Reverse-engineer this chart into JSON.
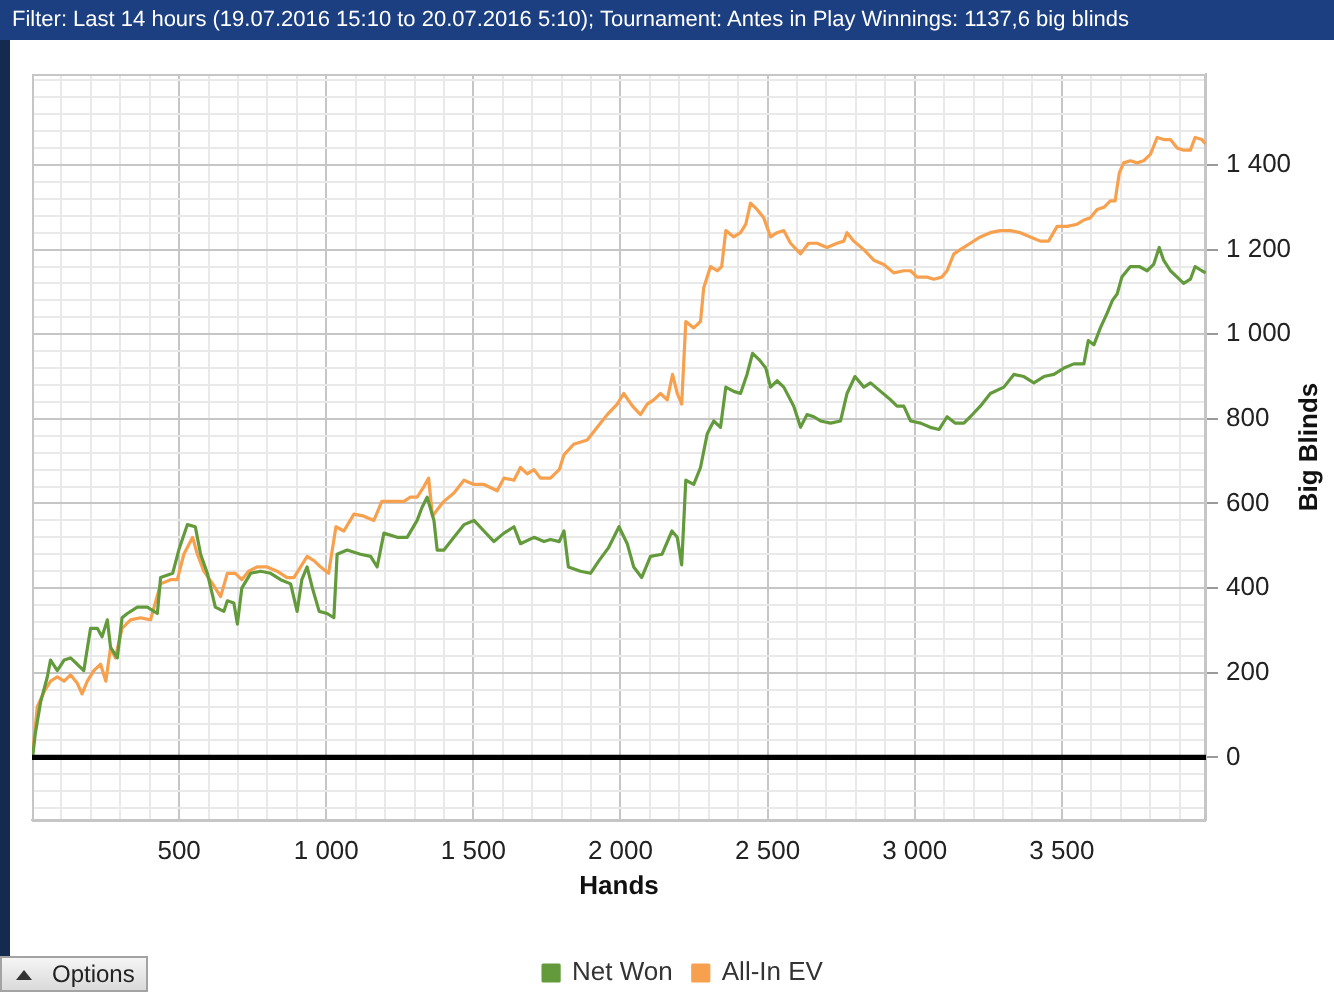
{
  "chart_data": {
    "type": "line",
    "title": "Filter: Last 14 hours (19.07.2016 15:10 to 20.07.2016 5:10); Tournament: Antes in Play Winnings: 1137,6 big blinds",
    "xlabel": "Hands",
    "ylabel": "Big Blinds",
    "xlim": [
      0,
      3990
    ],
    "xticks": [
      {
        "value": 100,
        "label": null
      },
      {
        "value": 200,
        "label": null
      },
      {
        "value": 300,
        "label": null
      },
      {
        "value": 400,
        "label": null
      },
      500,
      {
        "value": 600,
        "label": null
      },
      {
        "value": 700,
        "label": null
      },
      {
        "value": 800,
        "label": null
      },
      {
        "value": 900,
        "label": null
      },
      {
        "value": 1000,
        "label": "1 000"
      },
      {
        "value": 1100,
        "label": null
      },
      {
        "value": 1200,
        "label": null
      },
      {
        "value": 1300,
        "label": null
      },
      {
        "value": 1400,
        "label": null
      },
      {
        "value": 1500,
        "label": "1 500"
      },
      {
        "value": 1600,
        "label": null
      },
      {
        "value": 1700,
        "label": null
      },
      {
        "value": 1800,
        "label": null
      },
      {
        "value": 1900,
        "label": null
      },
      {
        "value": 2000,
        "label": "2 000"
      },
      {
        "value": 2100,
        "label": null
      },
      {
        "value": 2200,
        "label": null
      },
      {
        "value": 2300,
        "label": null
      },
      {
        "value": 2400,
        "label": null
      },
      {
        "value": 2500,
        "label": "2 500"
      },
      {
        "value": 2600,
        "label": null
      },
      {
        "value": 2700,
        "label": null
      },
      {
        "value": 2800,
        "label": null
      },
      {
        "value": 2900,
        "label": null
      },
      {
        "value": 3000,
        "label": "3 000"
      },
      {
        "value": 3100,
        "label": null
      },
      {
        "value": 3200,
        "label": null
      },
      {
        "value": 3300,
        "label": null
      },
      {
        "value": 3400,
        "label": null
      },
      {
        "value": 3500,
        "label": "3 500"
      },
      {
        "value": 3600,
        "label": null
      },
      {
        "value": 3700,
        "label": null
      },
      {
        "value": 3800,
        "label": null
      },
      {
        "value": 3900,
        "label": null
      }
    ],
    "ylim": [
      -148,
      1615
    ],
    "yticks": [
      {
        "value": -120,
        "label": null
      },
      {
        "value": -80,
        "label": null
      },
      {
        "value": -40,
        "label": null
      },
      0,
      {
        "value": 40,
        "label": null
      },
      {
        "value": 80,
        "label": null
      },
      {
        "value": 120,
        "label": null
      },
      {
        "value": 160,
        "label": null
      },
      200,
      {
        "value": 240,
        "label": null
      },
      {
        "value": 280,
        "label": null
      },
      {
        "value": 320,
        "label": null
      },
      {
        "value": 360,
        "label": null
      },
      400,
      {
        "value": 440,
        "label": null
      },
      {
        "value": 480,
        "label": null
      },
      {
        "value": 520,
        "label": null
      },
      {
        "value": 560,
        "label": null
      },
      600,
      {
        "value": 640,
        "label": null
      },
      {
        "value": 680,
        "label": null
      },
      {
        "value": 720,
        "label": null
      },
      {
        "value": 760,
        "label": null
      },
      800,
      {
        "value": 840,
        "label": null
      },
      {
        "value": 880,
        "label": null
      },
      {
        "value": 920,
        "label": null
      },
      {
        "value": 960,
        "label": null
      },
      {
        "value": 1000,
        "label": "1 000"
      },
      {
        "value": 1040,
        "label": null
      },
      {
        "value": 1080,
        "label": null
      },
      {
        "value": 1120,
        "label": null
      },
      {
        "value": 1160,
        "label": null
      },
      {
        "value": 1200,
        "label": "1 200"
      },
      {
        "value": 1240,
        "label": null
      },
      {
        "value": 1280,
        "label": null
      },
      {
        "value": 1320,
        "label": null
      },
      {
        "value": 1360,
        "label": null
      },
      {
        "value": 1400,
        "label": "1 400"
      },
      {
        "value": 1440,
        "label": null
      },
      {
        "value": 1480,
        "label": null
      },
      {
        "value": 1520,
        "label": null
      },
      {
        "value": 1560,
        "label": null
      },
      {
        "value": 1600,
        "label": null
      }
    ],
    "grid": true,
    "legend": "bottom",
    "ref_lines": [
      {
        "axis": "y",
        "value": 0,
        "color": "#000000"
      }
    ],
    "annotations": [
      "Options"
    ],
    "series": [
      {
        "name": "Net Won",
        "color": "#639a3b",
        "x": [
          2,
          11,
          29,
          52,
          63,
          86,
          109,
          131,
          154,
          176,
          199,
          222,
          238,
          256,
          267,
          290,
          306,
          324,
          358,
          392,
          426,
          437,
          478,
          501,
          528,
          555,
          573,
          596,
          623,
          652,
          664,
          686,
          698,
          713,
          743,
          777,
          811,
          845,
          879,
          901,
          917,
          935,
          953,
          976,
          1003,
          1026,
          1037,
          1071,
          1116,
          1151,
          1173,
          1196,
          1241,
          1275,
          1309,
          1325,
          1343,
          1366,
          1377,
          1400,
          1434,
          1468,
          1502,
          1536,
          1570,
          1604,
          1638,
          1660,
          1706,
          1740,
          1762,
          1792,
          1808,
          1823,
          1864,
          1898,
          1927,
          1959,
          1995,
          2023,
          2045,
          2072,
          2102,
          2141,
          2175,
          2193,
          2208,
          2222,
          2249,
          2272,
          2295,
          2317,
          2340,
          2358,
          2385,
          2408,
          2430,
          2449,
          2471,
          2494,
          2510,
          2532,
          2555,
          2589,
          2612,
          2634,
          2657,
          2680,
          2714,
          2748,
          2770,
          2797,
          2827,
          2850,
          2884,
          2918,
          2940,
          2963,
          2986,
          3020,
          3053,
          3083,
          3110,
          3137,
          3167,
          3189,
          3223,
          3257,
          3303,
          3337,
          3371,
          3405,
          3439,
          3473,
          3507,
          3541,
          3575,
          3590,
          3609,
          3631,
          3654,
          3672,
          3688,
          3704,
          3733,
          3763,
          3790,
          3812,
          3831,
          3846,
          3869,
          3892,
          3914,
          3937,
          3953,
          3976,
          3989
        ],
        "values": [
          0,
          55,
          130,
          190,
          230,
          205,
          230,
          235,
          220,
          205,
          305,
          305,
          285,
          325,
          260,
          235,
          330,
          340,
          355,
          355,
          340,
          425,
          435,
          495,
          550,
          545,
          480,
          435,
          355,
          345,
          370,
          365,
          315,
          400,
          435,
          440,
          435,
          420,
          410,
          345,
          420,
          450,
          400,
          345,
          340,
          330,
          480,
          490,
          480,
          475,
          450,
          530,
          520,
          520,
          560,
          590,
          615,
          560,
          490,
          490,
          520,
          550,
          560,
          535,
          510,
          530,
          545,
          505,
          520,
          510,
          515,
          510,
          535,
          450,
          440,
          435,
          465,
          495,
          545,
          505,
          450,
          425,
          475,
          480,
          535,
          520,
          455,
          655,
          645,
          685,
          765,
          795,
          780,
          875,
          865,
          860,
          905,
          955,
          940,
          920,
          875,
          890,
          875,
          830,
          780,
          810,
          805,
          795,
          790,
          795,
          860,
          900,
          875,
          885,
          865,
          845,
          830,
          830,
          795,
          790,
          780,
          775,
          805,
          790,
          790,
          805,
          830,
          860,
          875,
          905,
          900,
          885,
          900,
          905,
          920,
          930,
          930,
          985,
          975,
          1015,
          1050,
          1080,
          1095,
          1135,
          1160,
          1160,
          1150,
          1165,
          1205,
          1175,
          1150,
          1135,
          1120,
          1130,
          1160,
          1150,
          1145
        ]
      },
      {
        "name": "All-In EV",
        "color": "#f7a04e",
        "x": [
          2,
          18,
          41,
          63,
          86,
          109,
          131,
          154,
          170,
          188,
          210,
          233,
          251,
          267,
          283,
          306,
          335,
          369,
          403,
          437,
          471,
          494,
          516,
          546,
          562,
          584,
          614,
          641,
          664,
          691,
          713,
          736,
          765,
          799,
          833,
          867,
          890,
          913,
          935,
          958,
          981,
          1008,
          1033,
          1060,
          1094,
          1128,
          1162,
          1189,
          1230,
          1264,
          1286,
          1309,
          1332,
          1348,
          1361,
          1377,
          1400,
          1434,
          1468,
          1502,
          1536,
          1581,
          1604,
          1638,
          1660,
          1683,
          1706,
          1728,
          1762,
          1792,
          1808,
          1841,
          1887,
          1921,
          1955,
          1989,
          2011,
          2041,
          2068,
          2091,
          2113,
          2136,
          2159,
          2177,
          2193,
          2208,
          2222,
          2249,
          2272,
          2283,
          2306,
          2329,
          2344,
          2358,
          2385,
          2408,
          2426,
          2442,
          2464,
          2487,
          2510,
          2532,
          2555,
          2578,
          2612,
          2639,
          2668,
          2702,
          2736,
          2759,
          2770,
          2793,
          2827,
          2861,
          2895,
          2929,
          2963,
          2986,
          3008,
          3042,
          3065,
          3092,
          3110,
          3133,
          3155,
          3189,
          3223,
          3257,
          3291,
          3325,
          3359,
          3393,
          3427,
          3455,
          3484,
          3518,
          3552,
          3575,
          3597,
          3620,
          3643,
          3665,
          3681,
          3695,
          3710,
          3733,
          3756,
          3778,
          3801,
          3824,
          3846,
          3869,
          3892,
          3914,
          3937,
          3953,
          3976,
          3989
        ],
        "values": [
          10,
          120,
          155,
          180,
          190,
          180,
          195,
          175,
          150,
          180,
          205,
          220,
          180,
          260,
          235,
          305,
          325,
          330,
          325,
          410,
          420,
          420,
          480,
          520,
          480,
          440,
          410,
          380,
          435,
          435,
          420,
          440,
          450,
          450,
          440,
          425,
          425,
          450,
          475,
          465,
          450,
          435,
          545,
          535,
          575,
          570,
          560,
          605,
          605,
          605,
          615,
          615,
          640,
          660,
          570,
          585,
          605,
          625,
          655,
          645,
          645,
          630,
          660,
          655,
          685,
          670,
          680,
          660,
          660,
          680,
          715,
          740,
          750,
          780,
          810,
          835,
          860,
          830,
          810,
          835,
          845,
          860,
          845,
          905,
          860,
          835,
          1030,
          1015,
          1030,
          1110,
          1160,
          1150,
          1160,
          1245,
          1230,
          1240,
          1260,
          1310,
          1295,
          1275,
          1230,
          1240,
          1245,
          1215,
          1190,
          1215,
          1215,
          1205,
          1215,
          1220,
          1240,
          1220,
          1200,
          1175,
          1165,
          1145,
          1150,
          1150,
          1135,
          1135,
          1130,
          1135,
          1150,
          1190,
          1200,
          1215,
          1230,
          1240,
          1245,
          1245,
          1240,
          1230,
          1220,
          1220,
          1255,
          1255,
          1260,
          1270,
          1275,
          1295,
          1300,
          1315,
          1315,
          1380,
          1405,
          1410,
          1405,
          1410,
          1425,
          1465,
          1460,
          1460,
          1440,
          1435,
          1435,
          1465,
          1460,
          1450
        ]
      }
    ]
  }
}
